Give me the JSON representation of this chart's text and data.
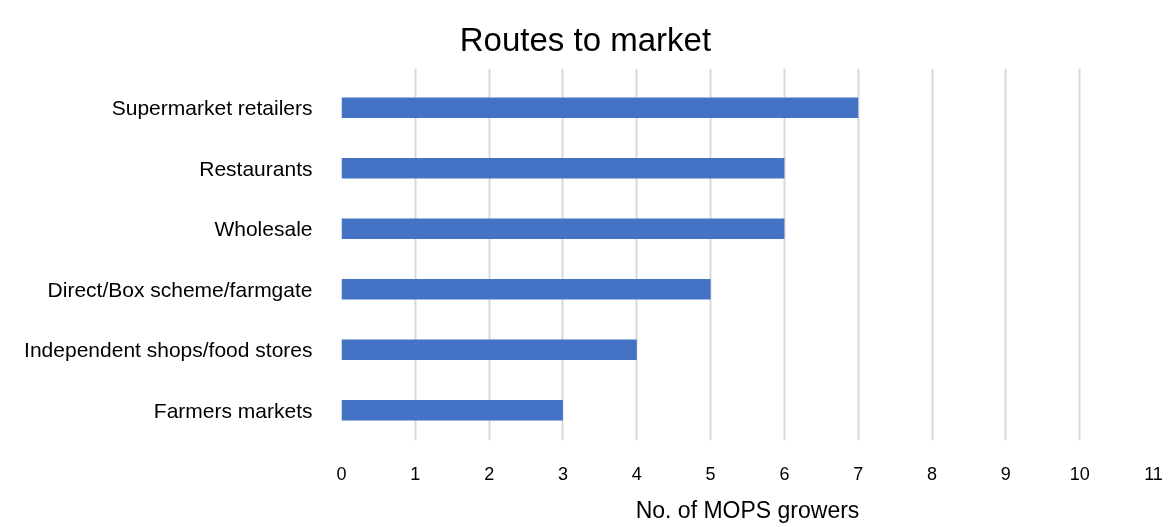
{
  "chart_data": {
    "type": "bar",
    "orientation": "horizontal",
    "title": "Routes to market",
    "xlabel": "No. of MOPS growers",
    "categories": [
      "Supermarket retailers",
      "Restaurants",
      "Wholesale",
      "Direct/Box scheme/farmgate",
      "Independent shops/food stores",
      "Farmers markets"
    ],
    "values": [
      7,
      6,
      6,
      5,
      4,
      3
    ],
    "color": "#4472c4",
    "xlim": [
      0,
      11
    ],
    "xticks": [
      0,
      1,
      2,
      3,
      4,
      5,
      6,
      7,
      8,
      9,
      10,
      11
    ],
    "grid": "x"
  }
}
